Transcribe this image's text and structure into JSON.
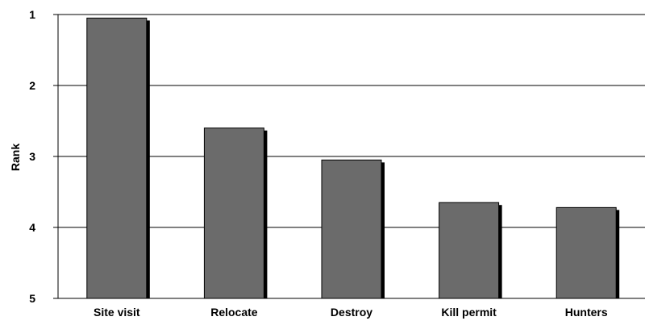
{
  "chart_data": {
    "type": "bar",
    "title": "",
    "xlabel": "",
    "ylabel": "Rank",
    "y_axis_inverted": true,
    "ylim": [
      1,
      5
    ],
    "yticks": [
      "1",
      "2",
      "3",
      "4",
      "5"
    ],
    "grid": "horizontal",
    "legend": "none",
    "categories": [
      "Site visit",
      "Relocate",
      "Destroy",
      "Kill permit",
      "Hunters"
    ],
    "values": [
      1.05,
      2.6,
      3.05,
      3.65,
      3.72
    ],
    "colors": {
      "bar_fill": "#6b6b6b",
      "bar_shadow": "#000000",
      "gridline": "#000000"
    }
  }
}
